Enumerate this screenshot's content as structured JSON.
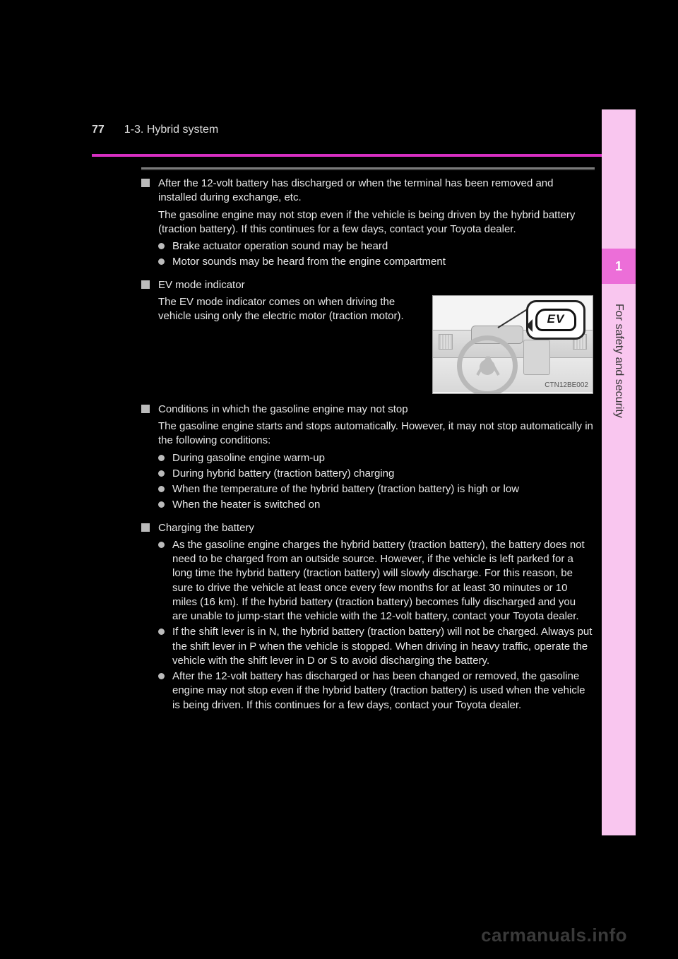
{
  "page_number": "77",
  "breadcrumb": "1-3. Hybrid system",
  "chapter_index": "1",
  "side_label": "For safety and security",
  "colors": {
    "accent_pink": "#d62fc1",
    "strip_light": "#f9c6ef",
    "strip_dark": "#ec6ed8",
    "text": "#e8e8e8",
    "background": "#000000"
  },
  "figure": {
    "caption": "CTN12BE002",
    "icon_text": "EV"
  },
  "watermark": "carmanuals.info",
  "sections": [
    {
      "type": "square",
      "title": "After the 12-volt battery has discharged or when the terminal has been removed and installed during exchange, etc.",
      "body": "The gasoline engine may not stop even if the vehicle is being driven by the hybrid battery (traction battery). If this continues for a few days, contact your Toyota dealer.",
      "bullets": [
        "Brake actuator operation sound may be heard",
        "Motor sounds may be heard from the engine compartment"
      ]
    },
    {
      "type": "square_with_figure",
      "title": "EV mode indicator",
      "body": "The EV mode indicator comes on when driving the vehicle using only the electric motor (traction motor)."
    },
    {
      "type": "square",
      "title": "Conditions in which the gasoline engine may not stop",
      "body": "The gasoline engine starts and stops automatically. However, it may not stop automatically in the following conditions:",
      "bullets": [
        "During gasoline engine warm-up",
        "During hybrid battery (traction battery) charging",
        "When the temperature of the hybrid battery (traction battery) is high or low",
        "When the heater is switched on"
      ]
    },
    {
      "type": "square_bulletbody",
      "title": "Charging the battery",
      "bullets": [
        "As the gasoline engine charges the hybrid battery (traction battery), the battery does not need to be charged from an outside source. However, if the vehicle is left parked for a long time the hybrid battery (traction battery) will slowly discharge. For this reason, be sure to drive the vehicle at least once every few months for at least 30 minutes or 10 miles (16 km). If the hybrid battery (traction battery) becomes fully discharged and you are unable to jump-start the vehicle with the 12-volt battery, contact your Toyota dealer.",
        "If the shift lever is in N, the hybrid battery (traction battery) will not be charged. Always put the shift lever in P when the vehicle is stopped. When driving in heavy traffic, operate the vehicle with the shift lever in D or S to avoid discharging the battery.",
        "After the 12-volt battery has discharged or has been changed or removed, the gasoline engine may not stop even if the hybrid battery (traction battery) is used when the vehicle is being driven. If this continues for a few days, contact your Toyota dealer."
      ]
    }
  ]
}
